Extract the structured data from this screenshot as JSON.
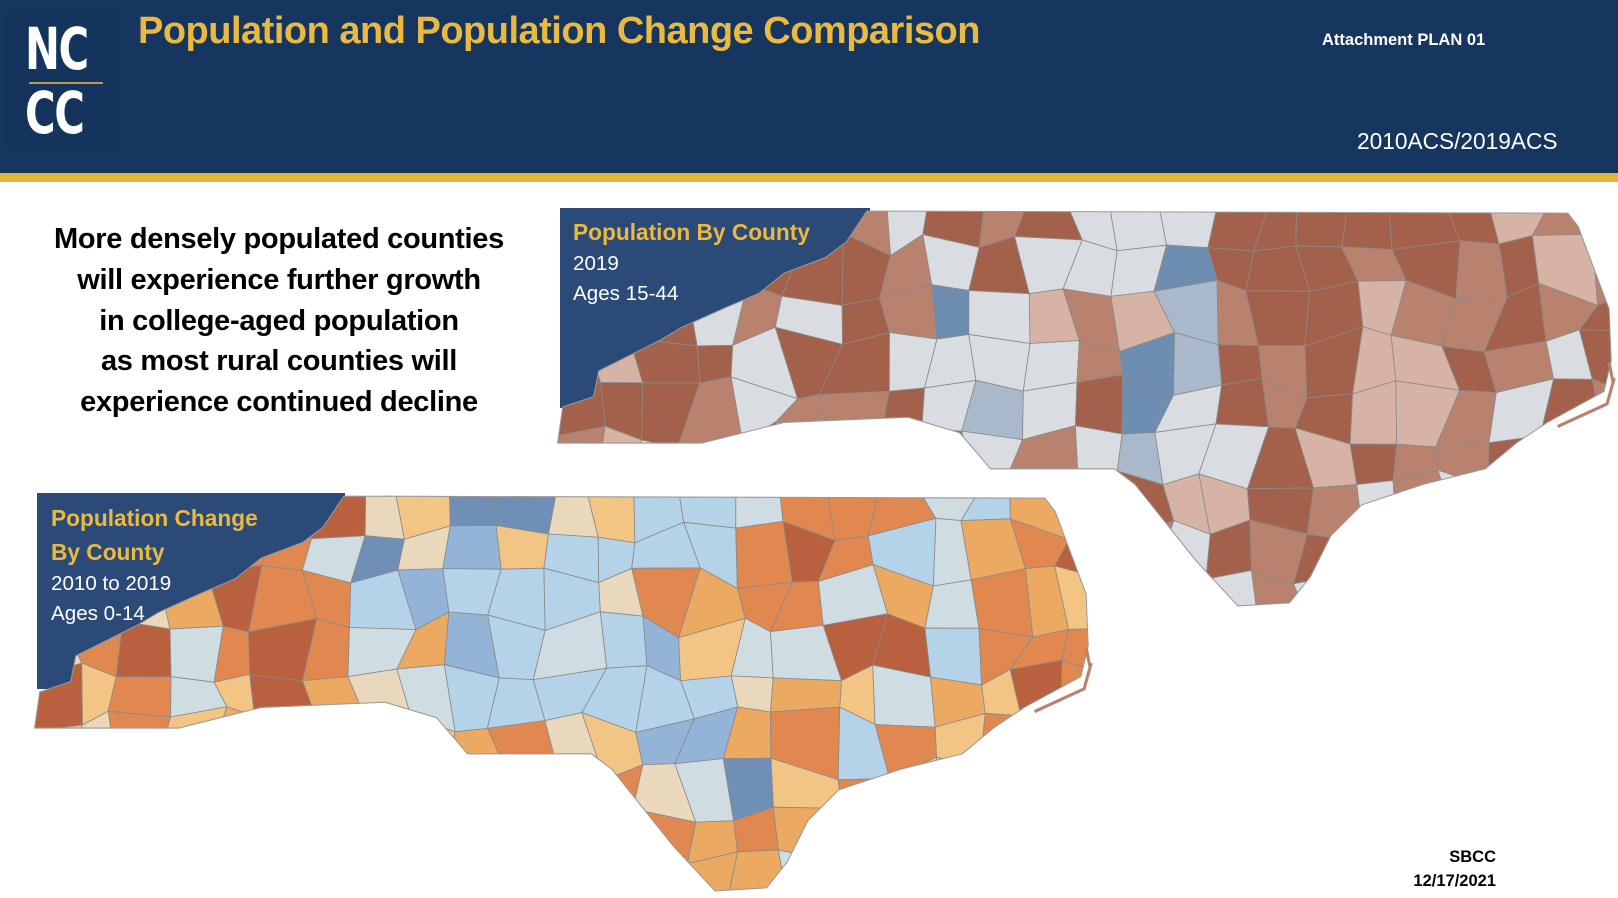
{
  "header": {
    "logo_text": [
      "NC",
      "CC"
    ],
    "title": "Population and Population Change Comparison",
    "attachment": "Attachment PLAN 01",
    "source": "2010ACS/2019ACS"
  },
  "claim": [
    "More densely populated counties",
    "will experience further growth",
    "in college-aged population",
    "as most rural counties will",
    "experience continued decline"
  ],
  "maps": [
    {
      "title": "Population By County",
      "subtitle": [
        "2019",
        "Ages 15-44"
      ],
      "palette": [
        "#a3604b",
        "#b8826f",
        "#d6b3a4",
        "#d9dde2",
        "#a9b9cb",
        "#6d8db1"
      ]
    },
    {
      "title_lines": [
        "Population Change",
        "By County"
      ],
      "subtitle": [
        "2010 to 2019",
        "Ages 0-14"
      ],
      "palette": [
        "#b9603e",
        "#e0884f",
        "#eca962",
        "#f3c584",
        "#ead8bc",
        "#cfdde3",
        "#b4d2e8",
        "#93b4d6",
        "#6f8fb7"
      ]
    }
  ],
  "colors": {
    "navy": "#16355f",
    "gold": "#e5b53a",
    "panel": "#2b4a78"
  },
  "footer": {
    "org": "SBCC",
    "date": "12/17/2021"
  }
}
